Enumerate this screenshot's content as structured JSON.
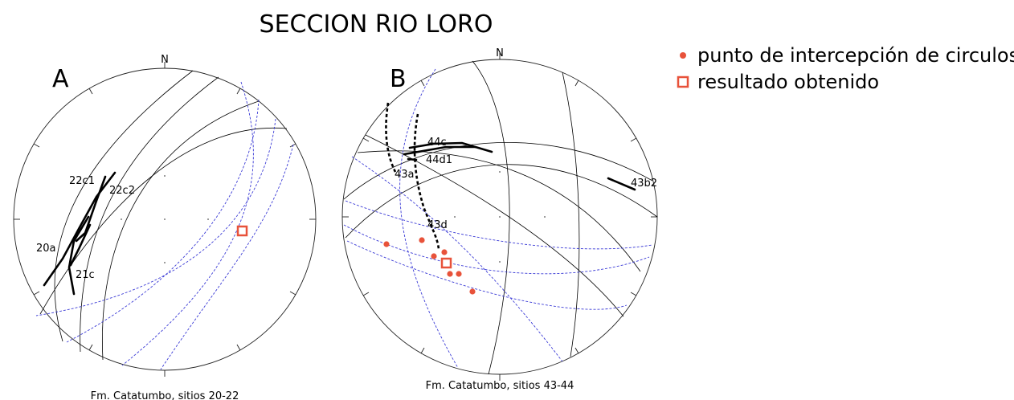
{
  "title": "SECCION RIO LORO",
  "legend": {
    "items": [
      {
        "label": "punto de intercepción de circulos",
        "marker": "dot",
        "color": "#e8523a"
      },
      {
        "label": "resultado obtenido",
        "marker": "square",
        "color": "#e8523a"
      }
    ]
  },
  "colors": {
    "great_circle": "#000000",
    "small_circle": "#3b3bd6",
    "highlight": "#e8523a"
  },
  "panel_a": {
    "letter": "A",
    "north": "N",
    "caption": "Fm. Catatumbo, sitios 20-22",
    "labels": [
      "22c1",
      "22c2",
      "20a",
      "21c"
    ]
  },
  "panel_b": {
    "letter": "B",
    "north": "N",
    "caption": "Fm. Catatumbo, sitios 43-44",
    "labels": [
      "44c",
      "44d1",
      "43a",
      "43b2",
      "43d"
    ]
  }
}
